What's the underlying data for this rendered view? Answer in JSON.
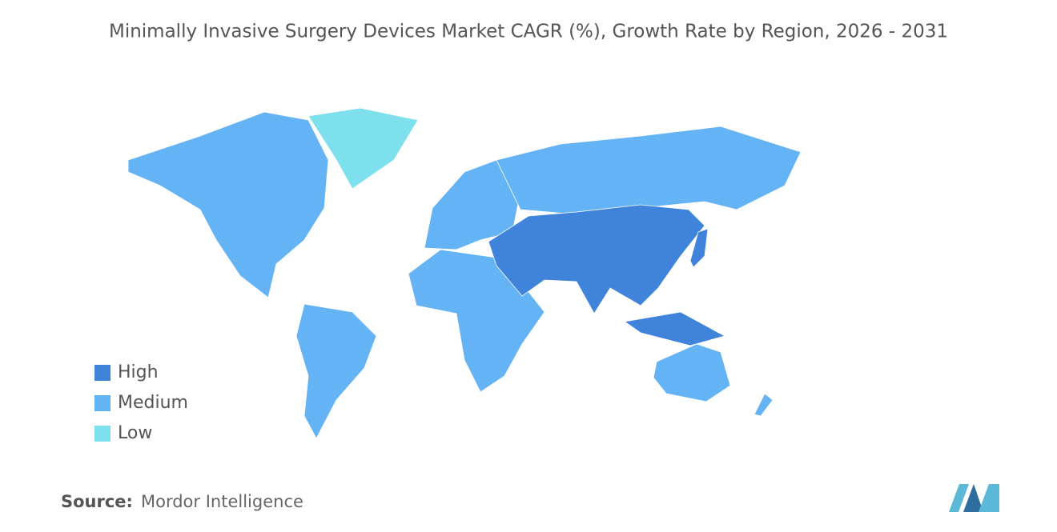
{
  "title": "Minimally Invasive Surgery Devices Market CAGR (%), Growth Rate by Region, 2026 - 2031",
  "legend": [
    {
      "label": "High",
      "color": "#3f83db"
    },
    {
      "label": "Medium",
      "color": "#64b3f4"
    },
    {
      "label": "Low",
      "color": "#7de0ec"
    }
  ],
  "source": {
    "label": "Source:",
    "text": "Mordor Intelligence"
  }
}
